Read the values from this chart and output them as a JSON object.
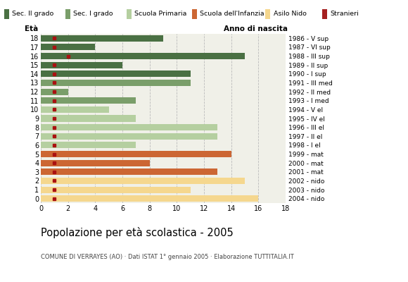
{
  "ages": [
    18,
    17,
    16,
    15,
    14,
    13,
    12,
    11,
    10,
    9,
    8,
    7,
    6,
    5,
    4,
    3,
    2,
    1,
    0
  ],
  "years": [
    "1986 - V sup",
    "1987 - VI sup",
    "1988 - III sup",
    "1989 - II sup",
    "1990 - I sup",
    "1991 - III med",
    "1992 - II med",
    "1993 - I med",
    "1994 - V el",
    "1995 - IV el",
    "1996 - III el",
    "1997 - II el",
    "1998 - I el",
    "1999 - mat",
    "2000 - mat",
    "2001 - mat",
    "2002 - nido",
    "2003 - nido",
    "2004 - nido"
  ],
  "values": [
    9,
    4,
    15,
    6,
    11,
    11,
    2,
    7,
    5,
    7,
    13,
    13,
    7,
    14,
    8,
    13,
    15,
    11,
    16
  ],
  "stranieri": [
    1,
    1,
    2,
    1,
    1,
    1,
    1,
    1,
    1,
    1,
    1,
    1,
    1,
    1,
    1,
    1,
    1,
    1,
    1
  ],
  "bar_colors": [
    "#4a7043",
    "#4a7043",
    "#4a7043",
    "#4a7043",
    "#4a7043",
    "#7a9e6a",
    "#7a9e6a",
    "#7a9e6a",
    "#b5cfa0",
    "#b5cfa0",
    "#b5cfa0",
    "#b5cfa0",
    "#b5cfa0",
    "#cc6633",
    "#cc6633",
    "#cc6633",
    "#f5d78e",
    "#f5d78e",
    "#f5d78e"
  ],
  "legend_labels": [
    "Sec. II grado",
    "Sec. I grado",
    "Scuola Primaria",
    "Scuola dell'Infanzia",
    "Asilo Nido",
    "Stranieri"
  ],
  "legend_colors": [
    "#4a7043",
    "#7a9e6a",
    "#b5cfa0",
    "#cc6633",
    "#f5d78e",
    "#a52020"
  ],
  "title": "Popolazione per età scolastica - 2005",
  "subtitle": "COMUNE DI VERRAYES (AO) · Dati ISTAT 1° gennaio 2005 · Elaborazione TUTTITALIA.IT",
  "xlabel_left": "Età",
  "xlabel_right": "Anno di nascita",
  "xlim": [
    0,
    18
  ],
  "background_color": "#f0f0e8",
  "grid_color": "#bbbbbb"
}
